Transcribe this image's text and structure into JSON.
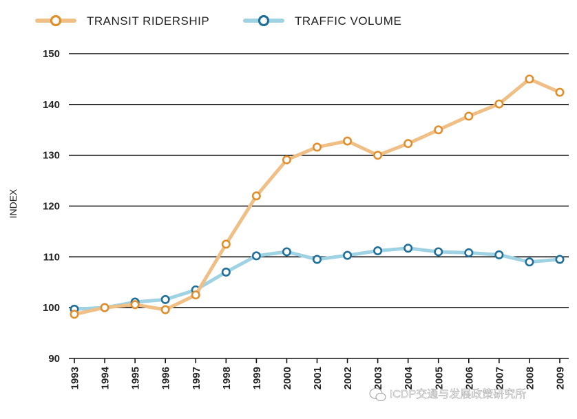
{
  "chart_data": {
    "type": "line",
    "title": "",
    "xlabel": "",
    "ylabel": "INDEX",
    "ylim": [
      90,
      150
    ],
    "yticks": [
      90,
      100,
      110,
      120,
      130,
      140,
      150
    ],
    "grid": true,
    "legend_position": "top-left",
    "categories": [
      "1993",
      "1994",
      "1995",
      "1996",
      "1997",
      "1998",
      "1999",
      "2000",
      "2001",
      "2002",
      "2003",
      "2004",
      "2005",
      "2006",
      "2007",
      "2008",
      "2009"
    ],
    "series": [
      {
        "name": "TRANSIT RIDERSHIP",
        "color": "#efbf86",
        "marker_color": "#e08f2e",
        "values": [
          98.7,
          100.0,
          100.6,
          99.6,
          102.5,
          112.5,
          122.0,
          129.1,
          131.6,
          132.8,
          130.0,
          132.3,
          135.0,
          137.7,
          140.1,
          145.0,
          142.4
        ]
      },
      {
        "name": "TRAFFIC VOLUME",
        "color": "#9fd2e3",
        "marker_color": "#1f6f98",
        "values": [
          99.7,
          100.0,
          101.1,
          101.6,
          103.5,
          107.0,
          110.2,
          111.0,
          109.5,
          110.3,
          111.2,
          111.7,
          111.0,
          110.8,
          110.4,
          109.0,
          109.5
        ]
      }
    ]
  },
  "watermark": "ICDP交通与发展政策研究所"
}
